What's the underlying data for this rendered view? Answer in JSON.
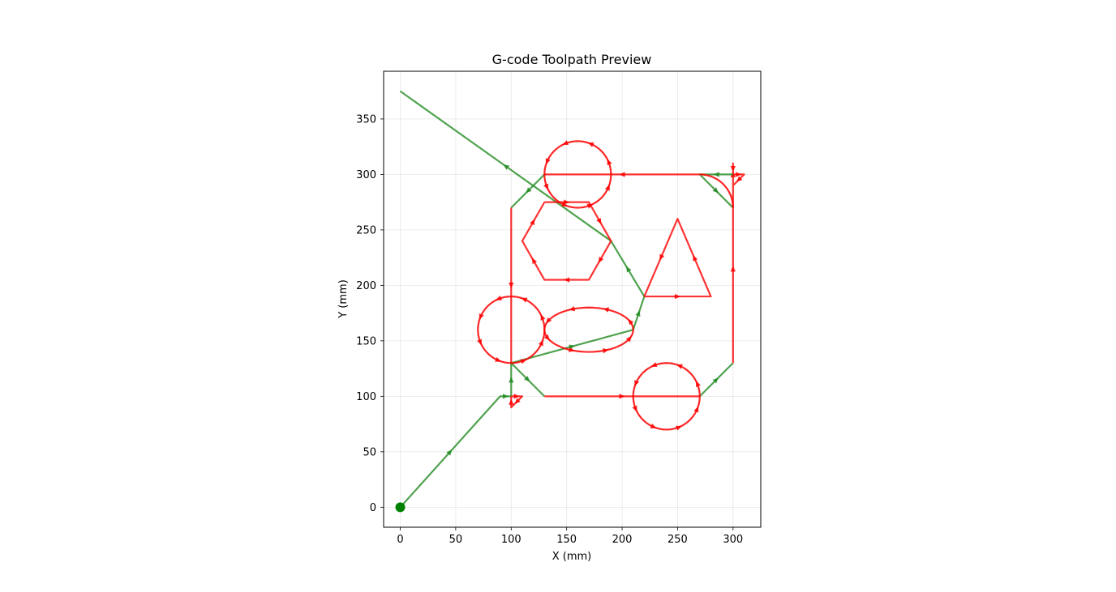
{
  "chart_data": {
    "type": "line",
    "title": "G-code Toolpath Preview",
    "xlabel": "X (mm)",
    "ylabel": "Y (mm)",
    "xlim": [
      -15,
      325
    ],
    "ylim": [
      -18,
      393
    ],
    "xticks": [
      0,
      50,
      100,
      150,
      200,
      250,
      300
    ],
    "yticks": [
      0,
      50,
      100,
      150,
      200,
      250,
      300,
      350
    ],
    "grid": true,
    "colors": {
      "rapid": "#228b22",
      "cut": "#ff0000",
      "start": "#008000"
    },
    "start_point": [
      0,
      0
    ],
    "series": [
      {
        "kind": "rapid",
        "points": [
          [
            0,
            0
          ],
          [
            90,
            100
          ],
          [
            100,
            100
          ],
          [
            100,
            130
          ],
          [
            130,
            100
          ],
          [
            130,
            100
          ]
        ]
      },
      {
        "kind": "cut",
        "points": [
          [
            100,
            100
          ],
          [
            110,
            100
          ],
          [
            100,
            90
          ],
          [
            100,
            100
          ]
        ]
      },
      {
        "kind": "cut",
        "points": [
          [
            130,
            100
          ],
          [
            270,
            100
          ],
          [
            270,
            100
          ]
        ]
      },
      {
        "kind": "rapid",
        "points": [
          [
            270,
            100
          ],
          [
            300,
            130
          ]
        ]
      },
      {
        "kind": "cut",
        "points": [
          [
            300,
            130
          ],
          [
            300,
            300
          ],
          [
            310,
            300
          ],
          [
            300,
            290
          ],
          [
            300,
            310
          ],
          [
            300,
            300
          ]
        ]
      },
      {
        "kind": "rapid",
        "points": [
          [
            300,
            300
          ],
          [
            270,
            300
          ],
          [
            300,
            270
          ]
        ]
      },
      {
        "kind": "cut",
        "points": [
          [
            270,
            300
          ],
          [
            130,
            300
          ]
        ]
      },
      {
        "kind": "rapid",
        "points": [
          [
            130,
            300
          ],
          [
            100,
            270
          ]
        ]
      },
      {
        "kind": "cut",
        "points": [
          [
            100,
            270
          ],
          [
            100,
            130
          ]
        ]
      },
      {
        "kind": "rapid",
        "points": [
          [
            100,
            130
          ],
          [
            210,
            160
          ],
          [
            220,
            190
          ],
          [
            190,
            240
          ],
          [
            0,
            375
          ]
        ]
      }
    ],
    "circles": [
      {
        "kind": "cut",
        "cx": 160,
        "cy": 300,
        "rx": 30,
        "ry": 30
      },
      {
        "kind": "cut",
        "cx": 240,
        "cy": 100,
        "rx": 30,
        "ry": 30
      },
      {
        "kind": "cut",
        "cx": 100,
        "cy": 160,
        "rx": 30,
        "ry": 30
      },
      {
        "kind": "cut",
        "cx": 170,
        "cy": 160,
        "rx": 40,
        "ry": 20
      }
    ],
    "arcs": [
      {
        "kind": "cut",
        "cx": 270,
        "cy": 270,
        "r": 30,
        "start_deg": 90,
        "end_deg": 0
      }
    ],
    "polygons": [
      {
        "kind": "cut",
        "points": [
          [
            130,
            275
          ],
          [
            170,
            275
          ],
          [
            190,
            240
          ],
          [
            170,
            205
          ],
          [
            130,
            205
          ],
          [
            110,
            240
          ]
        ]
      },
      {
        "kind": "cut",
        "points": [
          [
            220,
            190
          ],
          [
            280,
            190
          ],
          [
            250,
            260
          ]
        ]
      }
    ]
  }
}
